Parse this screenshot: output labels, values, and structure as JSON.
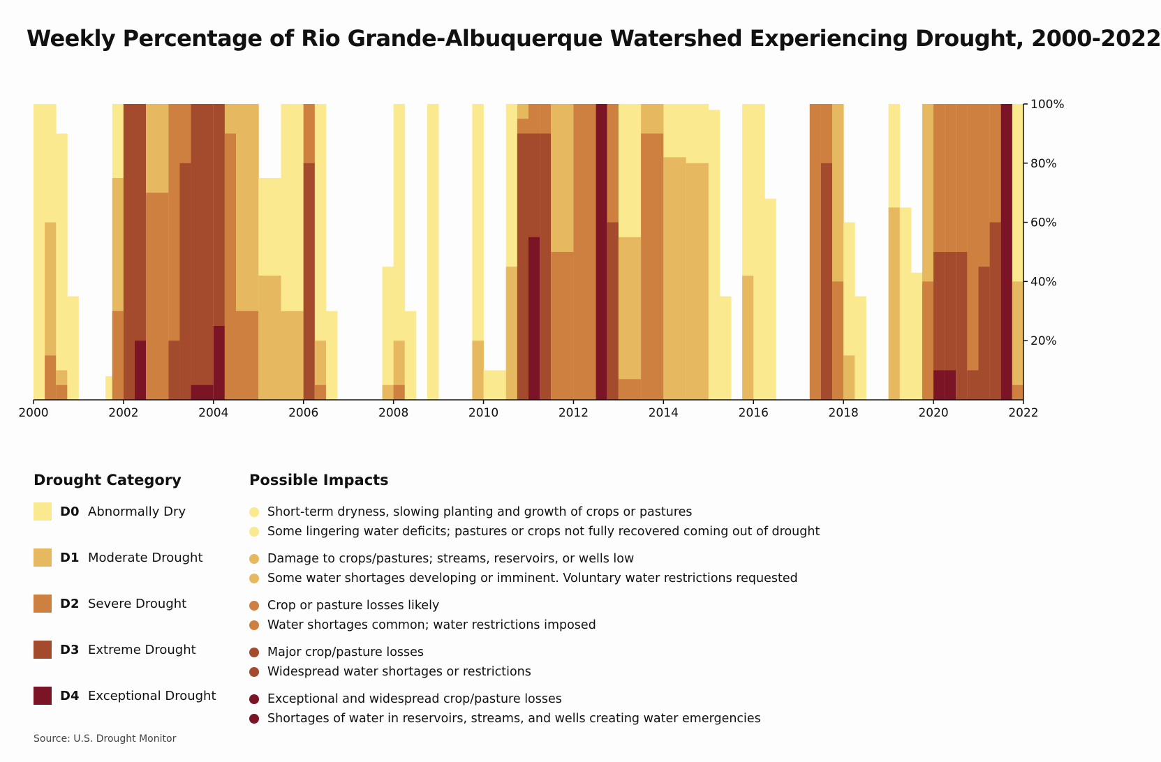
{
  "title": "Weekly Percentage of Rio Grande-Albuquerque Watershed Experiencing Drought, 2000-2022",
  "source": "Source: U.S. Drought Monitor",
  "chart_data": {
    "type": "area",
    "title": "Weekly Percentage of Rio Grande-Albuquerque Watershed Experiencing Drought, 2000-2022",
    "x_label": "",
    "y_label": "",
    "xlim": [
      2000,
      2022
    ],
    "ylim": [
      0,
      100
    ],
    "x_ticks": [
      "2000",
      "2002",
      "2004",
      "2006",
      "2008",
      "2010",
      "2012",
      "2014",
      "2016",
      "2018",
      "2020",
      "2022"
    ],
    "y_ticks": [
      "20%",
      "40%",
      "60%",
      "80%",
      "100%"
    ],
    "y_axis_side": "right",
    "grid": false,
    "series_colors": {
      "D0": "#fbe98f",
      "D1": "#e6b860",
      "D2": "#cd8040",
      "D3": "#a34b2c",
      "D4": "#7b1424"
    },
    "periods": [
      {
        "start": 2000.0,
        "end": 2000.25,
        "D0": 100,
        "D1": 0,
        "D2": 0,
        "D3": 0,
        "D4": 0
      },
      {
        "start": 2000.25,
        "end": 2000.5,
        "D0": 100,
        "D1": 60,
        "D2": 15,
        "D3": 0,
        "D4": 0
      },
      {
        "start": 2000.5,
        "end": 2000.75,
        "D0": 90,
        "D1": 10,
        "D2": 5,
        "D3": 0,
        "D4": 0
      },
      {
        "start": 2000.75,
        "end": 2001.0,
        "D0": 35,
        "D1": 0,
        "D2": 0,
        "D3": 0,
        "D4": 0
      },
      {
        "start": 2001.0,
        "end": 2001.6,
        "D0": 0,
        "D1": 0,
        "D2": 0,
        "D3": 0,
        "D4": 0
      },
      {
        "start": 2001.6,
        "end": 2001.75,
        "D0": 8,
        "D1": 0,
        "D2": 0,
        "D3": 0,
        "D4": 0
      },
      {
        "start": 2001.75,
        "end": 2002.0,
        "D0": 100,
        "D1": 75,
        "D2": 30,
        "D3": 0,
        "D4": 0
      },
      {
        "start": 2002.0,
        "end": 2002.25,
        "D0": 100,
        "D1": 100,
        "D2": 100,
        "D3": 100,
        "D4": 0
      },
      {
        "start": 2002.25,
        "end": 2002.5,
        "D0": 100,
        "D1": 100,
        "D2": 100,
        "D3": 100,
        "D4": 20
      },
      {
        "start": 2002.5,
        "end": 2003.0,
        "D0": 100,
        "D1": 100,
        "D2": 70,
        "D3": 0,
        "D4": 0
      },
      {
        "start": 2003.0,
        "end": 2003.25,
        "D0": 100,
        "D1": 100,
        "D2": 100,
        "D3": 20,
        "D4": 0
      },
      {
        "start": 2003.25,
        "end": 2003.5,
        "D0": 100,
        "D1": 100,
        "D2": 100,
        "D3": 80,
        "D4": 0
      },
      {
        "start": 2003.5,
        "end": 2004.0,
        "D0": 100,
        "D1": 100,
        "D2": 100,
        "D3": 100,
        "D4": 5
      },
      {
        "start": 2004.0,
        "end": 2004.25,
        "D0": 100,
        "D1": 100,
        "D2": 100,
        "D3": 100,
        "D4": 25
      },
      {
        "start": 2004.25,
        "end": 2004.5,
        "D0": 100,
        "D1": 100,
        "D2": 90,
        "D3": 0,
        "D4": 0
      },
      {
        "start": 2004.5,
        "end": 2005.0,
        "D0": 100,
        "D1": 100,
        "D2": 30,
        "D3": 0,
        "D4": 0
      },
      {
        "start": 2005.0,
        "end": 2005.5,
        "D0": 75,
        "D1": 42,
        "D2": 0,
        "D3": 0,
        "D4": 0
      },
      {
        "start": 2005.5,
        "end": 2006.0,
        "D0": 100,
        "D1": 30,
        "D2": 0,
        "D3": 0,
        "D4": 0
      },
      {
        "start": 2006.0,
        "end": 2006.25,
        "D0": 100,
        "D1": 100,
        "D2": 100,
        "D3": 80,
        "D4": 0
      },
      {
        "start": 2006.25,
        "end": 2006.5,
        "D0": 100,
        "D1": 20,
        "D2": 5,
        "D3": 0,
        "D4": 0
      },
      {
        "start": 2006.5,
        "end": 2006.75,
        "D0": 30,
        "D1": 0,
        "D2": 0,
        "D3": 0,
        "D4": 0
      },
      {
        "start": 2006.75,
        "end": 2007.75,
        "D0": 0,
        "D1": 0,
        "D2": 0,
        "D3": 0,
        "D4": 0
      },
      {
        "start": 2007.75,
        "end": 2008.0,
        "D0": 45,
        "D1": 5,
        "D2": 0,
        "D3": 0,
        "D4": 0
      },
      {
        "start": 2008.0,
        "end": 2008.25,
        "D0": 100,
        "D1": 20,
        "D2": 5,
        "D3": 0,
        "D4": 0
      },
      {
        "start": 2008.25,
        "end": 2008.5,
        "D0": 30,
        "D1": 0,
        "D2": 0,
        "D3": 0,
        "D4": 0
      },
      {
        "start": 2008.5,
        "end": 2008.75,
        "D0": 0,
        "D1": 0,
        "D2": 0,
        "D3": 0,
        "D4": 0
      },
      {
        "start": 2008.75,
        "end": 2009.0,
        "D0": 100,
        "D1": 0,
        "D2": 0,
        "D3": 0,
        "D4": 0
      },
      {
        "start": 2009.0,
        "end": 2009.75,
        "D0": 0,
        "D1": 0,
        "D2": 0,
        "D3": 0,
        "D4": 0
      },
      {
        "start": 2009.75,
        "end": 2010.0,
        "D0": 100,
        "D1": 20,
        "D2": 0,
        "D3": 0,
        "D4": 0
      },
      {
        "start": 2010.0,
        "end": 2010.5,
        "D0": 10,
        "D1": 0,
        "D2": 0,
        "D3": 0,
        "D4": 0
      },
      {
        "start": 2010.5,
        "end": 2010.75,
        "D0": 100,
        "D1": 45,
        "D2": 0,
        "D3": 0,
        "D4": 0
      },
      {
        "start": 2010.75,
        "end": 2011.0,
        "D0": 100,
        "D1": 100,
        "D2": 95,
        "D3": 90,
        "D4": 0
      },
      {
        "start": 2011.0,
        "end": 2011.25,
        "D0": 100,
        "D1": 100,
        "D2": 100,
        "D3": 90,
        "D4": 55
      },
      {
        "start": 2011.25,
        "end": 2011.5,
        "D0": 100,
        "D1": 100,
        "D2": 100,
        "D3": 90,
        "D4": 0
      },
      {
        "start": 2011.5,
        "end": 2012.0,
        "D0": 100,
        "D1": 100,
        "D2": 50,
        "D3": 0,
        "D4": 0
      },
      {
        "start": 2012.0,
        "end": 2012.5,
        "D0": 100,
        "D1": 100,
        "D2": 100,
        "D3": 0,
        "D4": 0
      },
      {
        "start": 2012.5,
        "end": 2012.75,
        "D0": 100,
        "D1": 100,
        "D2": 100,
        "D3": 100,
        "D4": 100
      },
      {
        "start": 2012.75,
        "end": 2013.0,
        "D0": 100,
        "D1": 100,
        "D2": 100,
        "D3": 60,
        "D4": 0
      },
      {
        "start": 2013.0,
        "end": 2013.5,
        "D0": 100,
        "D1": 55,
        "D2": 7,
        "D3": 0,
        "D4": 0
      },
      {
        "start": 2013.5,
        "end": 2014.0,
        "D0": 100,
        "D1": 100,
        "D2": 90,
        "D3": 0,
        "D4": 0
      },
      {
        "start": 2014.0,
        "end": 2014.5,
        "D0": 100,
        "D1": 82,
        "D2": 0,
        "D3": 0,
        "D4": 0
      },
      {
        "start": 2014.5,
        "end": 2015.0,
        "D0": 100,
        "D1": 80,
        "D2": 0,
        "D3": 0,
        "D4": 0
      },
      {
        "start": 2015.0,
        "end": 2015.25,
        "D0": 98,
        "D1": 0,
        "D2": 0,
        "D3": 0,
        "D4": 0
      },
      {
        "start": 2015.25,
        "end": 2015.5,
        "D0": 35,
        "D1": 0,
        "D2": 0,
        "D3": 0,
        "D4": 0
      },
      {
        "start": 2015.5,
        "end": 2015.75,
        "D0": 0,
        "D1": 0,
        "D2": 0,
        "D3": 0,
        "D4": 0
      },
      {
        "start": 2015.75,
        "end": 2016.0,
        "D0": 100,
        "D1": 42,
        "D2": 0,
        "D3": 0,
        "D4": 0
      },
      {
        "start": 2016.0,
        "end": 2016.25,
        "D0": 100,
        "D1": 0,
        "D2": 0,
        "D3": 0,
        "D4": 0
      },
      {
        "start": 2016.25,
        "end": 2016.5,
        "D0": 68,
        "D1": 0,
        "D2": 0,
        "D3": 0,
        "D4": 0
      },
      {
        "start": 2016.5,
        "end": 2017.25,
        "D0": 0,
        "D1": 0,
        "D2": 0,
        "D3": 0,
        "D4": 0
      },
      {
        "start": 2017.25,
        "end": 2017.5,
        "D0": 100,
        "D1": 100,
        "D2": 100,
        "D3": 0,
        "D4": 0
      },
      {
        "start": 2017.5,
        "end": 2017.75,
        "D0": 100,
        "D1": 100,
        "D2": 100,
        "D3": 80,
        "D4": 0
      },
      {
        "start": 2017.75,
        "end": 2018.0,
        "D0": 100,
        "D1": 100,
        "D2": 40,
        "D3": 0,
        "D4": 0
      },
      {
        "start": 2018.0,
        "end": 2018.25,
        "D0": 60,
        "D1": 15,
        "D2": 0,
        "D3": 0,
        "D4": 0
      },
      {
        "start": 2018.25,
        "end": 2018.5,
        "D0": 35,
        "D1": 0,
        "D2": 0,
        "D3": 0,
        "D4": 0
      },
      {
        "start": 2018.5,
        "end": 2019.0,
        "D0": 0,
        "D1": 0,
        "D2": 0,
        "D3": 0,
        "D4": 0
      },
      {
        "start": 2019.0,
        "end": 2019.25,
        "D0": 100,
        "D1": 65,
        "D2": 0,
        "D3": 0,
        "D4": 0
      },
      {
        "start": 2019.25,
        "end": 2019.5,
        "D0": 65,
        "D1": 0,
        "D2": 0,
        "D3": 0,
        "D4": 0
      },
      {
        "start": 2019.5,
        "end": 2019.75,
        "D0": 43,
        "D1": 0,
        "D2": 0,
        "D3": 0,
        "D4": 0
      },
      {
        "start": 2019.75,
        "end": 2020.0,
        "D0": 100,
        "D1": 100,
        "D2": 40,
        "D3": 0,
        "D4": 0
      },
      {
        "start": 2020.0,
        "end": 2020.25,
        "D0": 100,
        "D1": 100,
        "D2": 100,
        "D3": 50,
        "D4": 10
      },
      {
        "start": 2020.25,
        "end": 2020.5,
        "D0": 100,
        "D1": 100,
        "D2": 100,
        "D3": 50,
        "D4": 10
      },
      {
        "start": 2020.5,
        "end": 2020.75,
        "D0": 100,
        "D1": 100,
        "D2": 100,
        "D3": 50,
        "D4": 0
      },
      {
        "start": 2020.75,
        "end": 2021.0,
        "D0": 100,
        "D1": 100,
        "D2": 100,
        "D3": 10,
        "D4": 0
      },
      {
        "start": 2021.0,
        "end": 2021.25,
        "D0": 100,
        "D1": 100,
        "D2": 100,
        "D3": 45,
        "D4": 0
      },
      {
        "start": 2021.25,
        "end": 2021.5,
        "D0": 100,
        "D1": 100,
        "D2": 100,
        "D3": 60,
        "D4": 0
      },
      {
        "start": 2021.5,
        "end": 2021.75,
        "D0": 100,
        "D1": 100,
        "D2": 100,
        "D3": 100,
        "D4": 100
      },
      {
        "start": 2021.75,
        "end": 2022.0,
        "D0": 100,
        "D1": 40,
        "D2": 5,
        "D3": 0,
        "D4": 0
      }
    ]
  },
  "legend": {
    "heading": "Drought Category",
    "categories": [
      {
        "code": "D0",
        "label": "Abnormally Dry",
        "color": "#fbe98f"
      },
      {
        "code": "D1",
        "label": "Moderate Drought",
        "color": "#e6b860"
      },
      {
        "code": "D2",
        "label": "Severe Drought",
        "color": "#cd8040"
      },
      {
        "code": "D3",
        "label": "Extreme Drought",
        "color": "#a34b2c"
      },
      {
        "code": "D4",
        "label": "Exceptional Drought",
        "color": "#7b1424"
      }
    ]
  },
  "impacts": {
    "heading": "Possible Impacts",
    "groups": [
      {
        "code": "D0",
        "color": "#fbe98f",
        "items": [
          "Short-term dryness, slowing planting and growth of crops or pastures",
          "Some lingering water deficits; pastures or crops not fully recovered coming out of drought"
        ]
      },
      {
        "code": "D1",
        "color": "#e6b860",
        "items": [
          "Damage to crops/pastures; streams, reservoirs, or wells low",
          "Some water shortages developing or imminent. Voluntary water restrictions requested"
        ]
      },
      {
        "code": "D2",
        "color": "#cd8040",
        "items": [
          "Crop or pasture losses likely",
          "Water shortages common; water restrictions imposed"
        ]
      },
      {
        "code": "D3",
        "color": "#a34b2c",
        "items": [
          "Major crop/pasture losses",
          "Widespread water shortages or restrictions"
        ]
      },
      {
        "code": "D4",
        "color": "#7b1424",
        "items": [
          "Exceptional and widespread crop/pasture losses",
          "Shortages of water in reservoirs, streams, and wells creating water emergencies"
        ]
      }
    ]
  }
}
